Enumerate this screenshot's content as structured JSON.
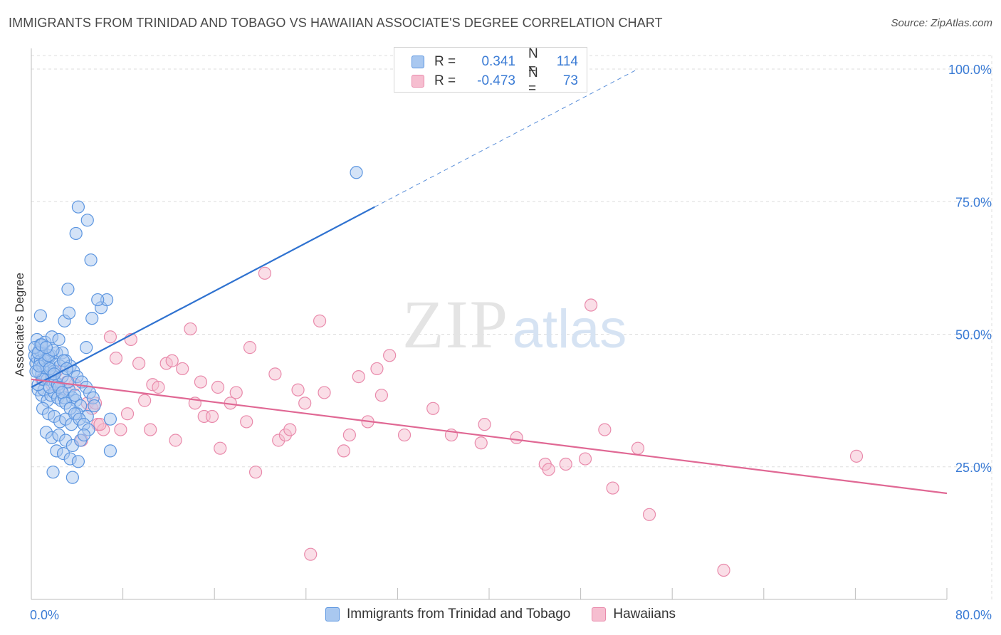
{
  "title": "IMMIGRANTS FROM TRINIDAD AND TOBAGO VS HAWAIIAN ASSOCIATE'S DEGREE CORRELATION CHART",
  "source": "Source: ZipAtlas.com",
  "watermark": {
    "zip": "ZIP",
    "atlas": "atlas"
  },
  "legend_top": {
    "rows": [
      {
        "r_label": "R =",
        "r_value": "0.341",
        "n_label": "N =",
        "n_value": "114"
      },
      {
        "r_label": "R =",
        "r_value": "-0.473",
        "n_label": "N =",
        "n_value": "73"
      }
    ]
  },
  "legend_bottom": {
    "items": [
      {
        "label": "Immigrants from Trinidad and Tobago"
      },
      {
        "label": "Hawaiians"
      }
    ]
  },
  "colors": {
    "blue_fill": "#a9c8f0",
    "blue_stroke": "#5b95e0",
    "blue_line": "#2f72d0",
    "pink_fill": "#f6bed0",
    "pink_stroke": "#e98aab",
    "pink_line": "#e06894",
    "axis_label": "#3a7bd5",
    "grid": "#dddddd"
  },
  "chart_data": {
    "type": "scatter",
    "title": "IMMIGRANTS FROM TRINIDAD AND TOBAGO VS HAWAIIAN ASSOCIATE'S DEGREE CORRELATION CHART",
    "xlabel": "",
    "ylabel": "Associate's Degree",
    "xlim": [
      0,
      80
    ],
    "ylim": [
      0,
      105
    ],
    "x_tick_labels": [
      "0.0%",
      "80.0%"
    ],
    "y_ticks": [
      25,
      50,
      75,
      100
    ],
    "y_tick_labels": [
      "25.0%",
      "50.0%",
      "75.0%",
      "100.0%"
    ],
    "grid": true,
    "legend_placement": "top-center",
    "series": [
      {
        "name": "Immigrants from Trinidad and Tobago",
        "color": "#5b95e0",
        "r": 0.341,
        "n": 114,
        "trend": {
          "x0": 0,
          "y0": 40.0,
          "x1": 30,
          "y1": 74.0,
          "dash_to_x": 53,
          "dash_to_y": 100
        },
        "points": [
          [
            0.3,
            46
          ],
          [
            0.4,
            44.5
          ],
          [
            0.5,
            45.5
          ],
          [
            0.6,
            43
          ],
          [
            0.7,
            47
          ],
          [
            0.8,
            45
          ],
          [
            0.9,
            42.5
          ],
          [
            1.0,
            44
          ],
          [
            1.1,
            46.5
          ],
          [
            1.2,
            45
          ],
          [
            1.3,
            43.5
          ],
          [
            1.4,
            41.5
          ],
          [
            1.5,
            45.5
          ],
          [
            1.6,
            44
          ],
          [
            1.7,
            46
          ],
          [
            1.8,
            42
          ],
          [
            1.9,
            44.5
          ],
          [
            2.0,
            43
          ],
          [
            2.1,
            41
          ],
          [
            2.2,
            46.5
          ],
          [
            0.5,
            49
          ],
          [
            0.8,
            48
          ],
          [
            1.2,
            48.5
          ],
          [
            1.8,
            49.5
          ],
          [
            2.4,
            49
          ],
          [
            0.6,
            39.5
          ],
          [
            0.9,
            38.5
          ],
          [
            1.1,
            39.5
          ],
          [
            1.4,
            37.5
          ],
          [
            1.7,
            38.5
          ],
          [
            2.0,
            39
          ],
          [
            2.3,
            38
          ],
          [
            2.6,
            37.5
          ],
          [
            2.9,
            38
          ],
          [
            3.3,
            39.5
          ],
          [
            3.6,
            38
          ],
          [
            3.9,
            37.5
          ],
          [
            4.3,
            36.5
          ],
          [
            1.0,
            36
          ],
          [
            1.5,
            35
          ],
          [
            2.0,
            34.5
          ],
          [
            2.5,
            33.5
          ],
          [
            3.0,
            34
          ],
          [
            3.5,
            33
          ],
          [
            4.0,
            35
          ],
          [
            1.3,
            31.5
          ],
          [
            1.8,
            30.5
          ],
          [
            2.4,
            31
          ],
          [
            3.0,
            30
          ],
          [
            3.6,
            29
          ],
          [
            2.2,
            28
          ],
          [
            2.8,
            27.5
          ],
          [
            3.4,
            26.5
          ],
          [
            4.1,
            26
          ],
          [
            1.9,
            24
          ],
          [
            3.6,
            23
          ],
          [
            4.3,
            30
          ],
          [
            4.9,
            34.5
          ],
          [
            6.9,
            34
          ],
          [
            6.9,
            28
          ],
          [
            0.8,
            53.5
          ],
          [
            2.9,
            52.5
          ],
          [
            3.3,
            54
          ],
          [
            5.3,
            53
          ],
          [
            6.1,
            55
          ],
          [
            6.6,
            56.5
          ],
          [
            5.8,
            56.5
          ],
          [
            3.2,
            58.5
          ],
          [
            5.2,
            64
          ],
          [
            3.9,
            69
          ],
          [
            4.9,
            71.5
          ],
          [
            4.1,
            74
          ],
          [
            4.8,
            47.5
          ],
          [
            2.7,
            46.5
          ],
          [
            3.0,
            45
          ],
          [
            3.4,
            44
          ],
          [
            3.7,
            43
          ],
          [
            4.0,
            42
          ],
          [
            4.4,
            41
          ],
          [
            4.8,
            40
          ],
          [
            5.1,
            39
          ],
          [
            5.4,
            38
          ],
          [
            0.6,
            40.5
          ],
          [
            1.0,
            41.5
          ],
          [
            1.6,
            40
          ],
          [
            2.3,
            40.5
          ],
          [
            2.7,
            42
          ],
          [
            3.2,
            41
          ],
          [
            0.4,
            43
          ],
          [
            0.7,
            44
          ],
          [
            1.2,
            45
          ],
          [
            1.5,
            46
          ],
          [
            1.9,
            47
          ],
          [
            2.5,
            44
          ],
          [
            2.8,
            45
          ],
          [
            3.1,
            43.5
          ],
          [
            0.3,
            47.5
          ],
          [
            0.6,
            46.5
          ],
          [
            0.9,
            48
          ],
          [
            1.3,
            47.5
          ],
          [
            1.6,
            43.5
          ],
          [
            2.0,
            42.5
          ],
          [
            2.4,
            40
          ],
          [
            2.7,
            39
          ],
          [
            3.0,
            37
          ],
          [
            3.4,
            36
          ],
          [
            3.8,
            35
          ],
          [
            4.2,
            34
          ],
          [
            4.6,
            33
          ],
          [
            5.0,
            32
          ],
          [
            28.4,
            80.5
          ],
          [
            5.5,
            36.5
          ],
          [
            4.6,
            31
          ],
          [
            3.8,
            38.5
          ]
        ]
      },
      {
        "name": "Hawaiians",
        "color": "#e98aab",
        "r": -0.473,
        "n": 73,
        "trend": {
          "x0": 0,
          "y0": 41.5,
          "x1": 80,
          "y1": 20.0
        },
        "points": [
          [
            0.9,
            41.5
          ],
          [
            2.6,
            39.5
          ],
          [
            3.8,
            40.5
          ],
          [
            4.9,
            37
          ],
          [
            5.3,
            36
          ],
          [
            5.8,
            33
          ],
          [
            6.3,
            32
          ],
          [
            6.9,
            49.5
          ],
          [
            7.4,
            45.5
          ],
          [
            7.8,
            32
          ],
          [
            8.4,
            35
          ],
          [
            8.7,
            49
          ],
          [
            9.4,
            44.5
          ],
          [
            9.9,
            37.5
          ],
          [
            10.4,
            32
          ],
          [
            10.6,
            40.5
          ],
          [
            11.1,
            40
          ],
          [
            11.8,
            44.5
          ],
          [
            12.3,
            45
          ],
          [
            12.6,
            30
          ],
          [
            13.2,
            43.5
          ],
          [
            13.9,
            51
          ],
          [
            14.3,
            37
          ],
          [
            14.8,
            41
          ],
          [
            15.1,
            34.5
          ],
          [
            15.8,
            34.5
          ],
          [
            16.3,
            40
          ],
          [
            16.5,
            28.5
          ],
          [
            17.4,
            37
          ],
          [
            17.9,
            39
          ],
          [
            18.8,
            33.5
          ],
          [
            19.1,
            47.5
          ],
          [
            19.6,
            24
          ],
          [
            20.4,
            61.5
          ],
          [
            21.3,
            42.5
          ],
          [
            21.6,
            30
          ],
          [
            22.2,
            31
          ],
          [
            22.6,
            32
          ],
          [
            23.3,
            39.5
          ],
          [
            23.9,
            37
          ],
          [
            24.4,
            8.5
          ],
          [
            25.2,
            52.5
          ],
          [
            25.6,
            39
          ],
          [
            27.3,
            28
          ],
          [
            27.8,
            31
          ],
          [
            28.6,
            42
          ],
          [
            29.4,
            33.5
          ],
          [
            30.2,
            43.5
          ],
          [
            30.6,
            38.5
          ],
          [
            31.3,
            46
          ],
          [
            32.6,
            31
          ],
          [
            35.1,
            36
          ],
          [
            36.7,
            31
          ],
          [
            39.3,
            29.5
          ],
          [
            39.6,
            33
          ],
          [
            42.4,
            30.5
          ],
          [
            44.9,
            25.5
          ],
          [
            45.2,
            24.5
          ],
          [
            46.7,
            25.5
          ],
          [
            48.4,
            26.5
          ],
          [
            48.9,
            55.5
          ],
          [
            50.1,
            32
          ],
          [
            50.8,
            21
          ],
          [
            53.0,
            28.5
          ],
          [
            54.0,
            16
          ],
          [
            60.5,
            5.5
          ],
          [
            72.1,
            27
          ],
          [
            3.1,
            41
          ],
          [
            1.8,
            40.5
          ],
          [
            2.2,
            43
          ],
          [
            4.4,
            30
          ],
          [
            5.6,
            37
          ],
          [
            6.0,
            33
          ]
        ]
      }
    ]
  }
}
